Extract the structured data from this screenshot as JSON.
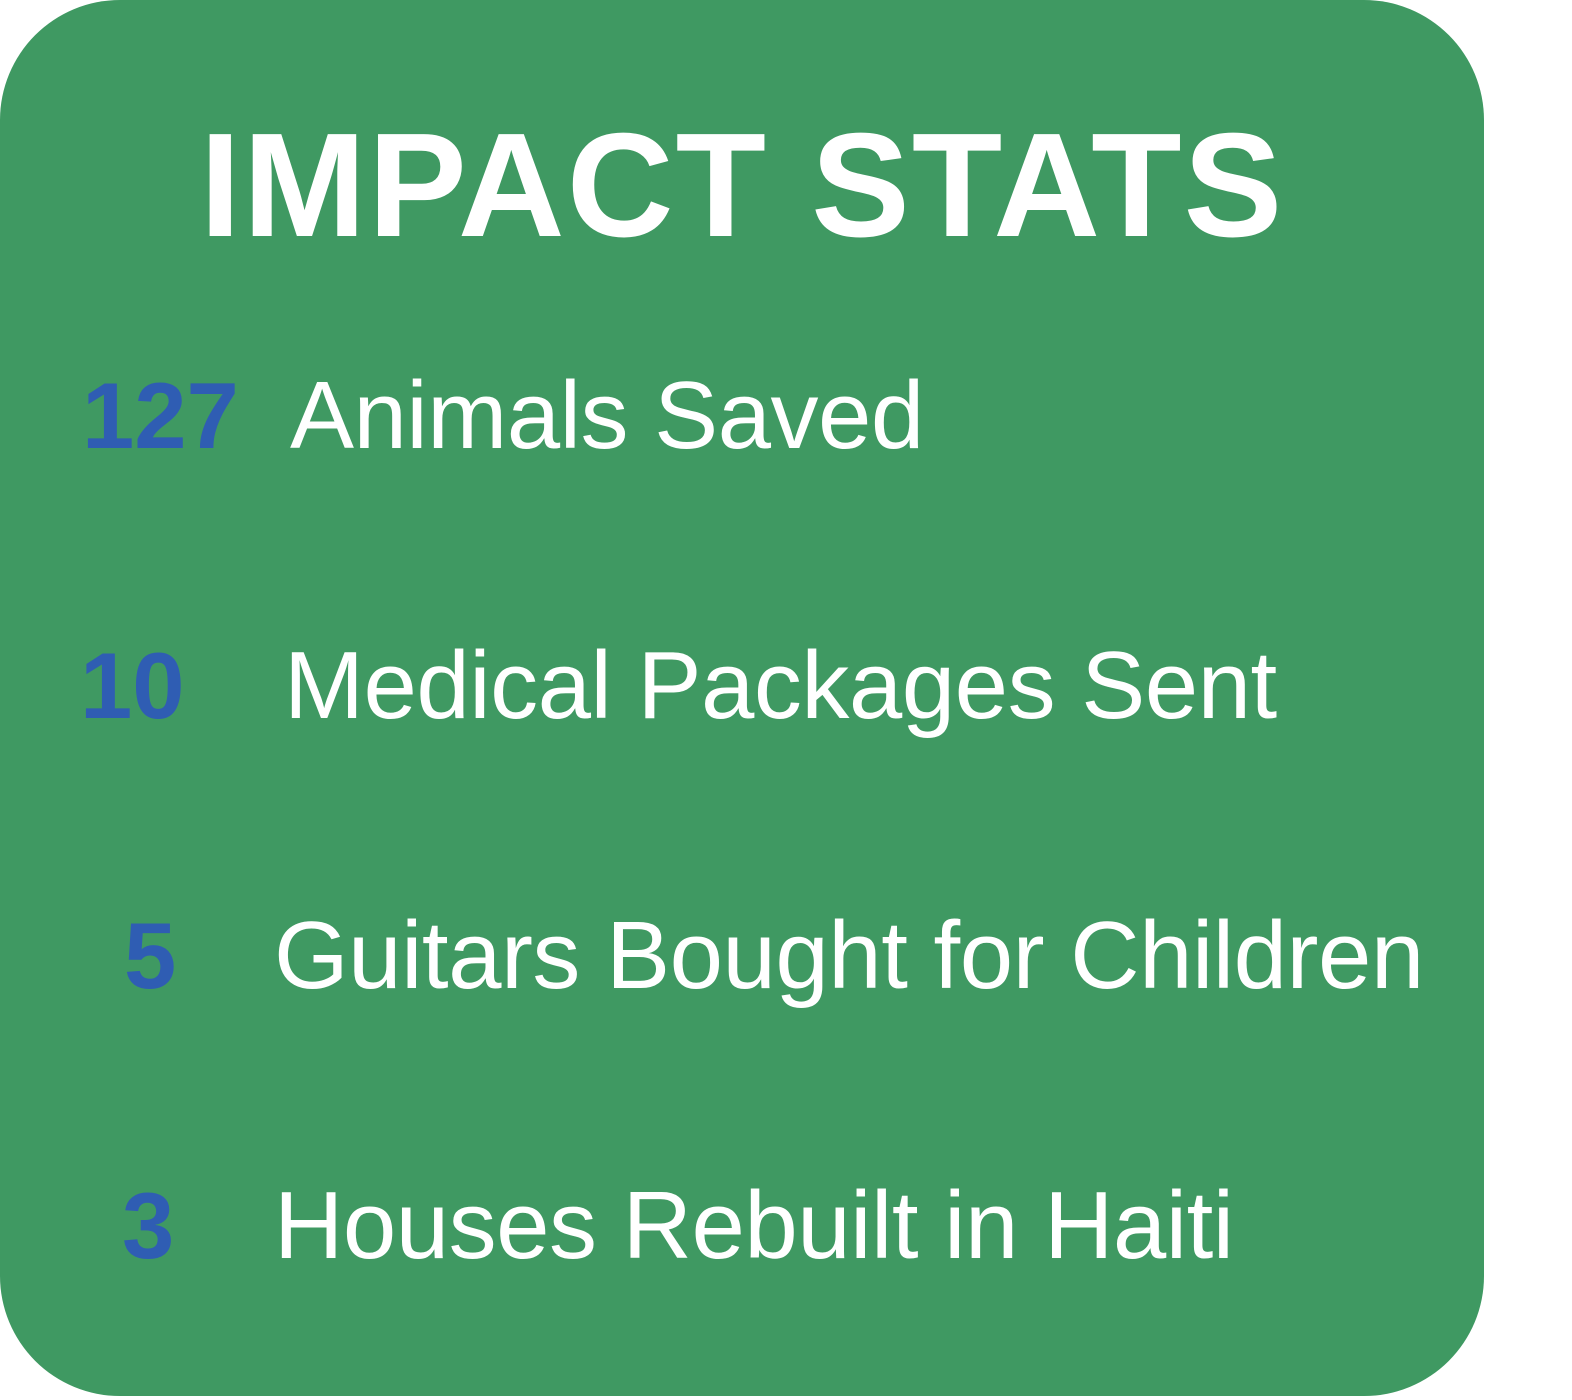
{
  "title": "IMPACT STATS",
  "colors": {
    "card_background": "#3f9962",
    "number": "#2f5db3",
    "text": "#ffffff"
  },
  "stats": [
    {
      "value": "127",
      "label": "Animals Saved"
    },
    {
      "value": "10",
      "label": "Medical Packages Sent"
    },
    {
      "value": "5",
      "label": "Guitars Bought for Children"
    },
    {
      "value": "3",
      "label": "Houses Rebuilt in Haiti"
    }
  ]
}
